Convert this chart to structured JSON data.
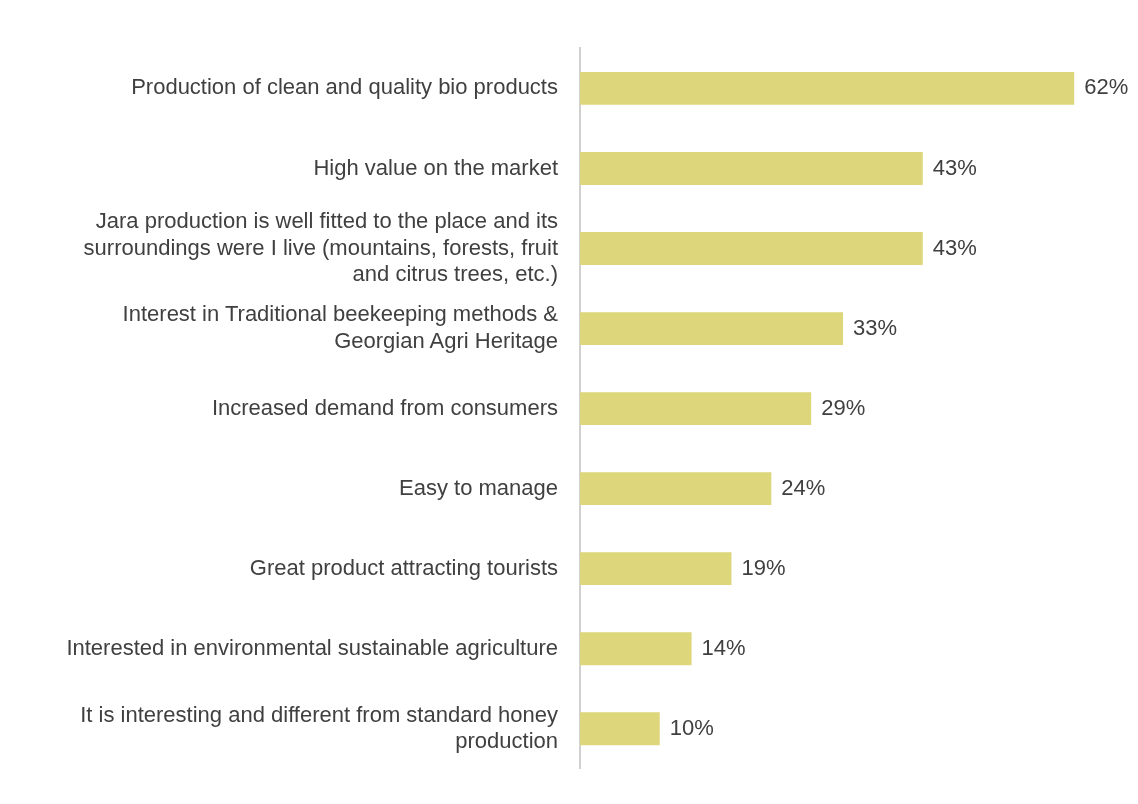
{
  "chart_data": {
    "type": "bar",
    "orientation": "horizontal",
    "categories": [
      "Production of clean and quality bio products",
      "High value on the market",
      "Jara production is well fitted to the place and its surroundings were I live (mountains, forests, fruit and citrus trees, etc.)",
      "Interest in Traditional beekeeping methods & Georgian Agri Heritage",
      "Increased demand from consumers",
      "Easy to manage",
      "Great product attracting tourists",
      "Interested in environmental sustainable agriculture",
      "It is interesting and different from standard honey production"
    ],
    "values": [
      62,
      43,
      43,
      33,
      29,
      24,
      19,
      14,
      10
    ],
    "value_labels": [
      "62%",
      "43%",
      "43%",
      "33%",
      "29%",
      "24%",
      "19%",
      "14%",
      "10%"
    ],
    "color": "#ddd67a",
    "tick_labels": "y",
    "grid": false,
    "legend": false
  }
}
